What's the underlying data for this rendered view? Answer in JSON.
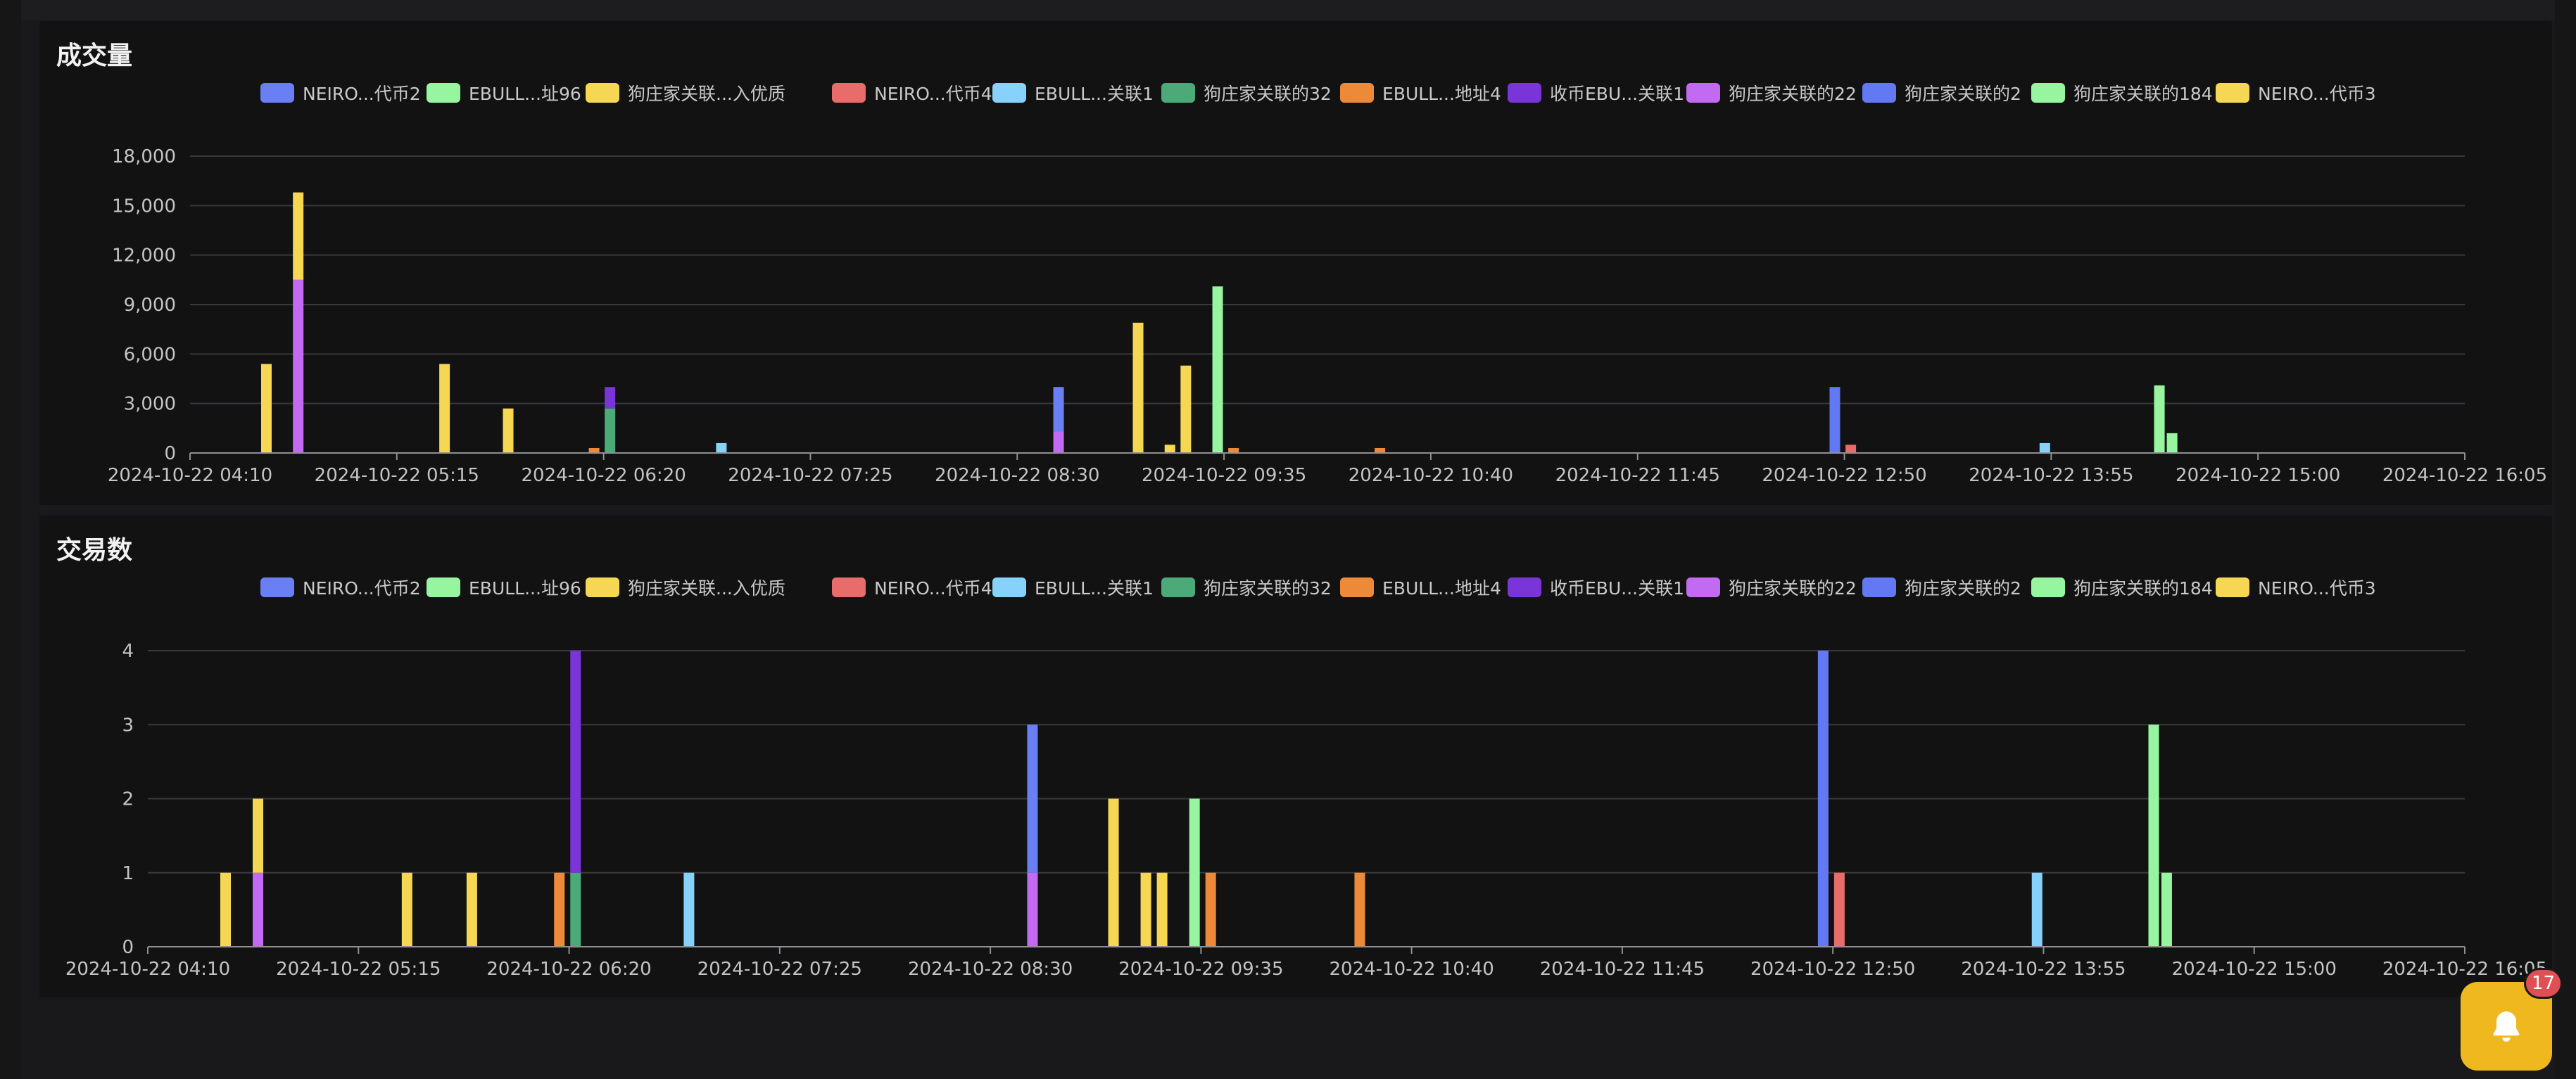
{
  "legend": [
    {
      "label": "NEIRO...代币2",
      "color": "#6b7ff5"
    },
    {
      "label": "EBULL...址96",
      "color": "#97f5a0"
    },
    {
      "label": "狗庄家关联...入优质",
      "color": "#f5d754"
    },
    {
      "label": "NEIRO...代币4",
      "color": "#e76c6a"
    },
    {
      "label": "EBULL...关联1",
      "color": "#86d2fa"
    },
    {
      "label": "狗庄家关联的32",
      "color": "#4caa78"
    },
    {
      "label": "EBULL...地址4",
      "color": "#ec8a3a"
    },
    {
      "label": "收币EBU...关联1",
      "color": "#7a35d8"
    },
    {
      "label": "狗庄家关联的22",
      "color": "#c36af3"
    },
    {
      "label": "狗庄家关联的2",
      "color": "#6378f3"
    },
    {
      "label": "狗庄家关联的184",
      "color": "#97f5a0"
    },
    {
      "label": "NEIRO...代币3",
      "color": "#f5d754"
    }
  ],
  "notification": {
    "count": "17",
    "icon": "bell-icon"
  },
  "chart_data": [
    {
      "type": "bar",
      "stacked": true,
      "title": "成交量",
      "x_ticks": [
        "2024-10-22 04:10",
        "2024-10-22 05:15",
        "2024-10-22 06:20",
        "2024-10-22 07:25",
        "2024-10-22 08:30",
        "2024-10-22 09:35",
        "2024-10-22 10:40",
        "2024-10-22 11:45",
        "2024-10-22 12:50",
        "2024-10-22 13:55",
        "2024-10-22 15:00",
        "2024-10-22 16:05"
      ],
      "xlim": [
        "2024-10-22 04:10",
        "2024-10-22 16:05"
      ],
      "y_ticks": [
        "0",
        "3,000",
        "6,000",
        "9,000",
        "12,000",
        "15,000",
        "18,000"
      ],
      "ylim": [
        0,
        18000
      ],
      "grid": true,
      "legend_position": "top",
      "bars": [
        {
          "x": "2024-10-22 04:34",
          "values": [
            {
              "s": 2,
              "v": 5400
            }
          ]
        },
        {
          "x": "2024-10-22 04:44",
          "values": [
            {
              "s": 8,
              "v": 10500
            },
            {
              "s": 2,
              "v": 5300
            }
          ]
        },
        {
          "x": "2024-10-22 05:30",
          "values": [
            {
              "s": 2,
              "v": 5400
            }
          ]
        },
        {
          "x": "2024-10-22 05:50",
          "values": [
            {
              "s": 2,
              "v": 2700
            }
          ]
        },
        {
          "x": "2024-10-22 06:17",
          "values": [
            {
              "s": 6,
              "v": 300
            }
          ]
        },
        {
          "x": "2024-10-22 06:22",
          "values": [
            {
              "s": 5,
              "v": 2700
            },
            {
              "s": 7,
              "v": 1300
            }
          ]
        },
        {
          "x": "2024-10-22 06:57",
          "values": [
            {
              "s": 4,
              "v": 600
            }
          ]
        },
        {
          "x": "2024-10-22 08:43",
          "values": [
            {
              "s": 8,
              "v": 1300
            },
            {
              "s": 0,
              "v": 2700
            }
          ]
        },
        {
          "x": "2024-10-22 09:08",
          "values": [
            {
              "s": 2,
              "v": 7900
            }
          ]
        },
        {
          "x": "2024-10-22 09:18",
          "values": [
            {
              "s": 2,
              "v": 500
            }
          ]
        },
        {
          "x": "2024-10-22 09:23",
          "values": [
            {
              "s": 2,
              "v": 5300
            }
          ]
        },
        {
          "x": "2024-10-22 09:33",
          "values": [
            {
              "s": 1,
              "v": 10100
            }
          ]
        },
        {
          "x": "2024-10-22 09:38",
          "values": [
            {
              "s": 6,
              "v": 300
            }
          ]
        },
        {
          "x": "2024-10-22 10:24",
          "values": [
            {
              "s": 6,
              "v": 300
            }
          ]
        },
        {
          "x": "2024-10-22 12:47",
          "values": [
            {
              "s": 9,
              "v": 4000
            }
          ]
        },
        {
          "x": "2024-10-22 12:52",
          "values": [
            {
              "s": 3,
              "v": 500
            }
          ]
        },
        {
          "x": "2024-10-22 13:53",
          "values": [
            {
              "s": 4,
              "v": 600
            }
          ]
        },
        {
          "x": "2024-10-22 14:29",
          "values": [
            {
              "s": 10,
              "v": 4100
            }
          ]
        },
        {
          "x": "2024-10-22 14:33",
          "values": [
            {
              "s": 10,
              "v": 1200
            }
          ]
        }
      ]
    },
    {
      "type": "bar",
      "stacked": true,
      "title": "交易数",
      "x_ticks": [
        "2024-10-22 04:10",
        "2024-10-22 05:15",
        "2024-10-22 06:20",
        "2024-10-22 07:25",
        "2024-10-22 08:30",
        "2024-10-22 09:35",
        "2024-10-22 10:40",
        "2024-10-22 11:45",
        "2024-10-22 12:50",
        "2024-10-22 13:55",
        "2024-10-22 15:00",
        "2024-10-22 16:05"
      ],
      "xlim": [
        "2024-10-22 04:10",
        "2024-10-22 16:05"
      ],
      "y_ticks": [
        "0",
        "1",
        "2",
        "3",
        "4"
      ],
      "ylim": [
        0,
        4
      ],
      "grid": true,
      "legend_position": "top",
      "bars": [
        {
          "x": "2024-10-22 04:34",
          "values": [
            {
              "s": 2,
              "v": 1
            }
          ]
        },
        {
          "x": "2024-10-22 04:44",
          "values": [
            {
              "s": 8,
              "v": 1
            },
            {
              "s": 2,
              "v": 1
            }
          ]
        },
        {
          "x": "2024-10-22 05:30",
          "values": [
            {
              "s": 2,
              "v": 1
            }
          ]
        },
        {
          "x": "2024-10-22 05:50",
          "values": [
            {
              "s": 2,
              "v": 1
            }
          ]
        },
        {
          "x": "2024-10-22 06:17",
          "values": [
            {
              "s": 6,
              "v": 1
            }
          ]
        },
        {
          "x": "2024-10-22 06:22",
          "values": [
            {
              "s": 5,
              "v": 1
            },
            {
              "s": 7,
              "v": 3
            }
          ]
        },
        {
          "x": "2024-10-22 06:57",
          "values": [
            {
              "s": 4,
              "v": 1
            }
          ]
        },
        {
          "x": "2024-10-22 08:43",
          "values": [
            {
              "s": 8,
              "v": 1
            },
            {
              "s": 0,
              "v": 2
            }
          ]
        },
        {
          "x": "2024-10-22 09:08",
          "values": [
            {
              "s": 2,
              "v": 2
            }
          ]
        },
        {
          "x": "2024-10-22 09:18",
          "values": [
            {
              "s": 2,
              "v": 1
            }
          ]
        },
        {
          "x": "2024-10-22 09:23",
          "values": [
            {
              "s": 2,
              "v": 1
            }
          ]
        },
        {
          "x": "2024-10-22 09:33",
          "values": [
            {
              "s": 1,
              "v": 2
            }
          ]
        },
        {
          "x": "2024-10-22 09:38",
          "values": [
            {
              "s": 6,
              "v": 1
            }
          ]
        },
        {
          "x": "2024-10-22 10:24",
          "values": [
            {
              "s": 6,
              "v": 1
            }
          ]
        },
        {
          "x": "2024-10-22 12:47",
          "values": [
            {
              "s": 9,
              "v": 4
            }
          ]
        },
        {
          "x": "2024-10-22 12:52",
          "values": [
            {
              "s": 3,
              "v": 1
            }
          ]
        },
        {
          "x": "2024-10-22 13:53",
          "values": [
            {
              "s": 4,
              "v": 1
            }
          ]
        },
        {
          "x": "2024-10-22 14:29",
          "values": [
            {
              "s": 10,
              "v": 3
            }
          ]
        },
        {
          "x": "2024-10-22 14:33",
          "values": [
            {
              "s": 10,
              "v": 1
            }
          ]
        }
      ]
    }
  ]
}
